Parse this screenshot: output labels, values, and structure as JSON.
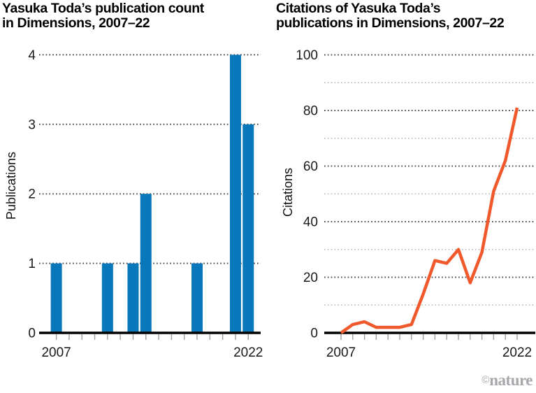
{
  "colors": {
    "bar": "#0878ba",
    "line": "#f0592b",
    "axis": "#000000",
    "grid_major": "#4f4f4f",
    "grid_minor": "#b8b8b8",
    "tick": "#a0a0a0",
    "axis_text": "#1a1a1a",
    "title_text": "#000000",
    "footer_text": "#a6a8ab"
  },
  "footer": {
    "copyright": "©",
    "brand": "nature"
  },
  "chart_data": [
    {
      "type": "bar",
      "title": "Yasuka Toda’s publication count in Dimensions, 2007–22",
      "title_lines": [
        "Yasuka Toda’s publication count",
        "in Dimensions, 2007–22"
      ],
      "xlabel": "",
      "ylabel": "Publications",
      "x": [
        2007,
        2008,
        2009,
        2010,
        2011,
        2012,
        2013,
        2014,
        2015,
        2016,
        2017,
        2018,
        2019,
        2020,
        2021,
        2022
      ],
      "values": [
        1,
        0,
        0,
        0,
        1,
        0,
        1,
        2,
        0,
        0,
        0,
        1,
        0,
        0,
        4,
        3
      ],
      "ylim": [
        0,
        4
      ],
      "yticks": [
        0,
        1,
        2,
        3,
        4
      ],
      "xtick_labels": [
        "2007",
        "2022"
      ],
      "grid": "dotted horizontal",
      "legend": "none"
    },
    {
      "type": "line",
      "title": "Citations of Yasuka Toda’s publications in Dimensions, 2007–22",
      "title_lines": [
        "Citations of Yasuka Toda’s",
        "publications in Dimensions, 2007–22"
      ],
      "xlabel": "",
      "ylabel": "Citations",
      "x": [
        2007,
        2008,
        2009,
        2010,
        2011,
        2012,
        2013,
        2014,
        2015,
        2016,
        2017,
        2018,
        2019,
        2020,
        2021,
        2022
      ],
      "values": [
        0,
        3,
        4,
        2,
        2,
        2,
        3,
        14,
        26,
        25,
        30,
        18,
        29,
        51,
        62,
        81
      ],
      "ylim": [
        0,
        100
      ],
      "yticks_major": [
        0,
        20,
        40,
        60,
        80,
        100
      ],
      "yticks_minor": [
        10,
        30,
        50,
        70,
        90
      ],
      "xtick_labels": [
        "2007",
        "2022"
      ],
      "grid": "dotted horizontal, minor lines lighter",
      "legend": "none"
    }
  ]
}
